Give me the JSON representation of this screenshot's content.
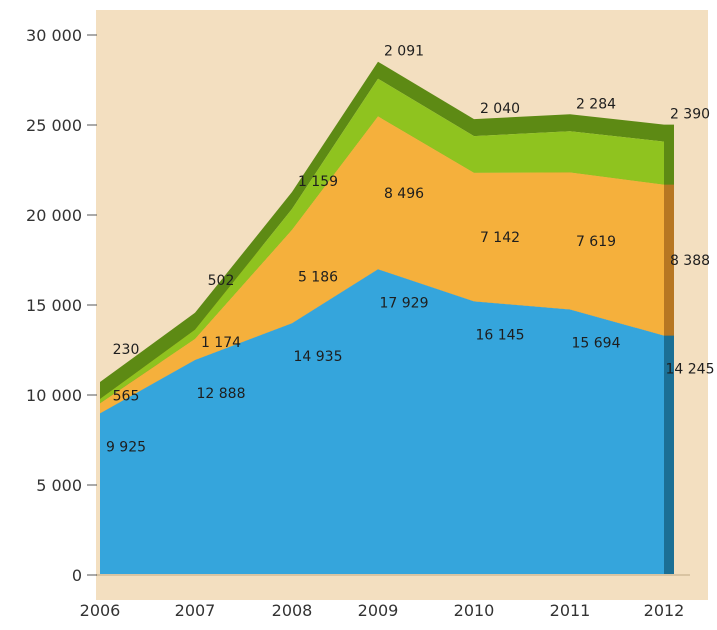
{
  "chart_data": {
    "type": "area",
    "stacked": true,
    "style": "3d",
    "categories": [
      "2006",
      "2007",
      "2008",
      "2009",
      "2010",
      "2011",
      "2012"
    ],
    "series": [
      {
        "color": "#35a5dc",
        "side_color": "#1b6f95",
        "values": [
          9925,
          12888,
          14935,
          17929,
          16145,
          15694,
          14245
        ]
      },
      {
        "color": "#f5b03c",
        "side_color": "#b77722",
        "values": [
          565,
          1174,
          5186,
          8496,
          7142,
          7619,
          8388
        ]
      },
      {
        "color": "#8fc31f",
        "side_color": "#5d8a14",
        "values": [
          230,
          502,
          1159,
          2091,
          2040,
          2284,
          2390
        ]
      }
    ],
    "value_labels": [
      [
        "9 925",
        "12 888",
        "14 935",
        "17 929",
        "16 145",
        "15 694",
        "14 245"
      ],
      [
        "565",
        "1 174",
        "5 186",
        "8 496",
        "7 142",
        "7 619",
        "8 388"
      ],
      [
        "230",
        "502",
        "1 159",
        "2 091",
        "2 040",
        "2 284",
        "2 390"
      ]
    ],
    "y_ticks": [
      0,
      5000,
      10000,
      15000,
      20000,
      25000,
      30000
    ],
    "y_tick_labels": [
      "0",
      "5 000",
      "10 000",
      "15 000",
      "20 000",
      "25 000",
      "30 000"
    ],
    "ylim": [
      0,
      30000
    ],
    "grid": false,
    "background_color": "#f3dfc0"
  }
}
